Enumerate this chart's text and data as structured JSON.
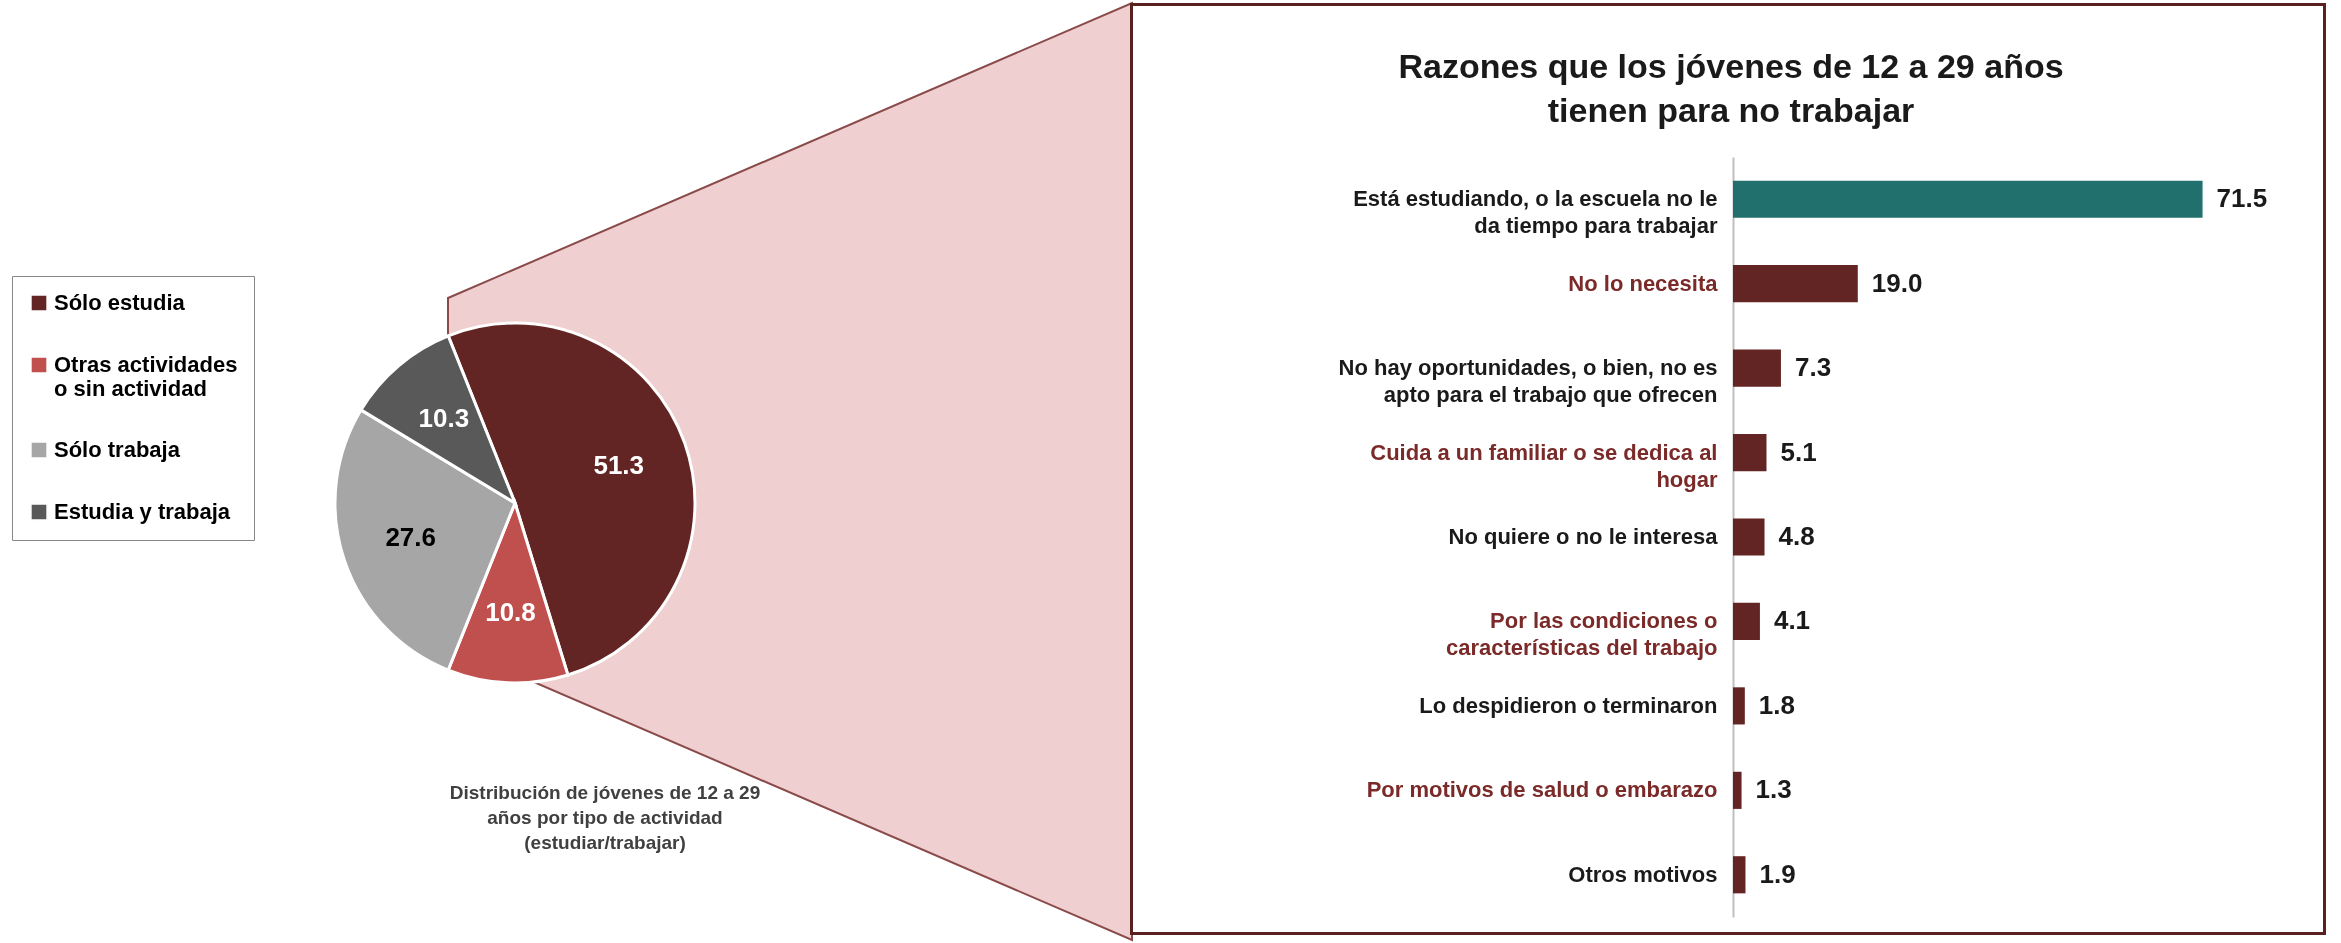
{
  "chart_data": [
    {
      "type": "pie",
      "categories": [
        "Sólo estudia",
        "Otras actividades o sin actividad",
        "Sólo trabaja",
        "Estudia y trabaja"
      ],
      "values": [
        51.3,
        10.8,
        27.6,
        10.3
      ],
      "colors": [
        "#632523",
        "#c0504d",
        "#a6a6a6",
        "#595959"
      ],
      "data_labels": true,
      "legend": "left",
      "annotations": [
        "Distribución de jóvenes de 12 a 29 años por tipo de actividad (estudiar/trabajar)"
      ]
    },
    {
      "type": "bar",
      "orientation": "horizontal",
      "title": "Razones que los jóvenes de 12 a 29 años tienen para no trabajar",
      "categories": [
        "Está estudiando, o la escuela no le da tiempo para trabajar",
        "No lo necesita",
        "No hay oportunidades, o bien, no es apto para el trabajo que ofrecen",
        "Cuida a un familiar o se dedica al hogar",
        "No quiere o no le interesa",
        "Por las condiciones o características del trabajo",
        "Lo despidieron o terminaron",
        "Por motivos de salud o embarazo",
        "Otros motivos"
      ],
      "values": [
        71.5,
        19.0,
        7.3,
        5.1,
        4.8,
        4.1,
        1.8,
        1.3,
        1.9
      ],
      "value_labels": [
        "71.5",
        "19.0",
        "7.3",
        "5.1",
        "4.8",
        "4.1",
        "1.8",
        "1.3",
        "1.9"
      ],
      "colors": [
        "#21706e",
        "#632523",
        "#632523",
        "#632523",
        "#632523",
        "#632523",
        "#632523",
        "#632523",
        "#632523"
      ]
    }
  ]
}
